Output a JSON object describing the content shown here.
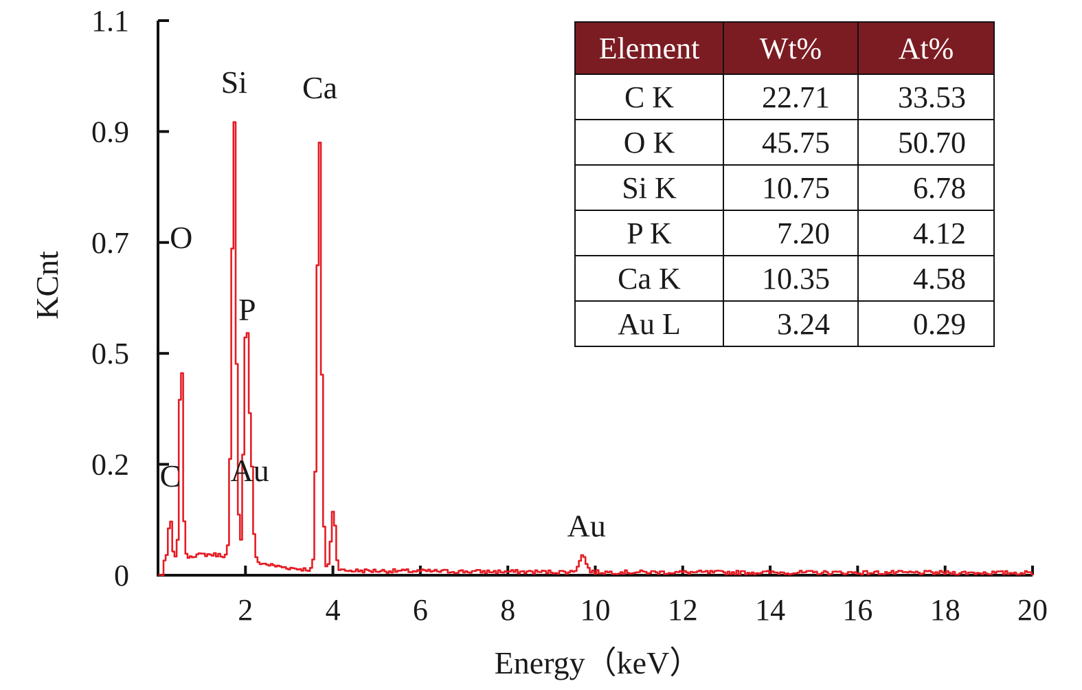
{
  "chart_data": {
    "type": "line",
    "xlabel": "Energy（keV）",
    "ylabel": "KCnt",
    "xlim": [
      0,
      20
    ],
    "ylim": [
      0,
      1.1
    ],
    "x_ticks": [
      2,
      4,
      6,
      8,
      10,
      12,
      14,
      16,
      18,
      20
    ],
    "y_ticks": [
      0,
      0.2,
      0.5,
      0.7,
      0.9,
      1.1
    ],
    "y_tick_labels": [
      "0",
      "0.2",
      "0.5",
      "0.7",
      "0.9",
      "1.1"
    ],
    "grid": false,
    "series_color": "#e51c24",
    "peak_labels": [
      {
        "label": "C",
        "x": 0.28,
        "y": 0.16
      },
      {
        "label": "O",
        "x": 0.53,
        "y": 0.69
      },
      {
        "label": "Si",
        "x": 1.74,
        "y": 0.97
      },
      {
        "label": "Ca",
        "x": 3.7,
        "y": 0.96
      },
      {
        "label": "P",
        "x": 2.04,
        "y": 0.56
      },
      {
        "label": "Au",
        "x": 2.1,
        "y": 0.17
      },
      {
        "label": "Au",
        "x": 9.8,
        "y": 0.07
      }
    ],
    "peaks": [
      {
        "x": 0.28,
        "y": 0.08
      },
      {
        "x": 0.53,
        "y": 0.49
      },
      {
        "x": 1.74,
        "y": 0.9
      },
      {
        "x": 2.02,
        "y": 0.53
      },
      {
        "x": 2.12,
        "y": 0.18
      },
      {
        "x": 3.69,
        "y": 0.89
      },
      {
        "x": 4.01,
        "y": 0.11
      },
      {
        "x": 9.71,
        "y": 0.03
      }
    ],
    "table": {
      "headers": [
        "Element",
        "Wt%",
        "At%"
      ],
      "rows": [
        [
          "C K",
          "22.71",
          "33.53"
        ],
        [
          "O K",
          "45.75",
          "50.70"
        ],
        [
          "Si K",
          "10.75",
          "6.78"
        ],
        [
          "P K",
          "7.20",
          "4.12"
        ],
        [
          "Ca K",
          "10.35",
          "4.58"
        ],
        [
          "Au L",
          "3.24",
          "0.29"
        ]
      ],
      "header_color": "#7b1c23"
    }
  }
}
